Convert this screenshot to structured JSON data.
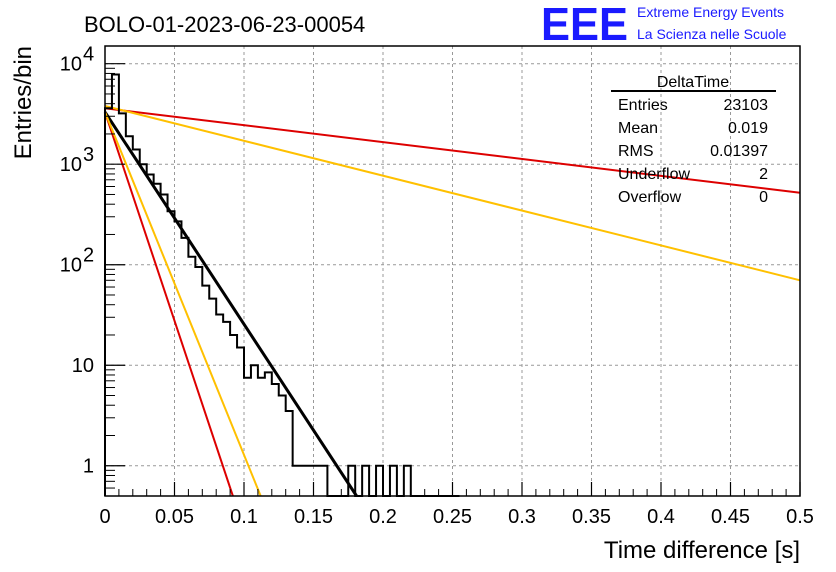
{
  "chart_data": {
    "type": "histogram",
    "title": "BOLO-01-2023-06-23-00054",
    "xlabel": "Time difference [s]",
    "ylabel": "Entries/bin",
    "xlim": [
      0,
      0.5
    ],
    "ylim": [
      0.5,
      15000
    ],
    "yscale": "log",
    "grid": true,
    "x_ticks": [
      "0",
      "0.05",
      "0.1",
      "0.15",
      "0.2",
      "0.25",
      "0.3",
      "0.35",
      "0.4",
      "0.45",
      "0.5"
    ],
    "y_ticks": [
      {
        "value": 1,
        "label": "1"
      },
      {
        "value": 10,
        "label": "10"
      },
      {
        "value": 100,
        "label": "10",
        "sup": "2"
      },
      {
        "value": 1000,
        "label": "10",
        "sup": "3"
      },
      {
        "value": 10000,
        "label": "10",
        "sup": "4"
      }
    ],
    "histogram": {
      "bin_width": 0.005,
      "x_start": 0,
      "counts": [
        3600,
        7800,
        3200,
        1900,
        1400,
        1000,
        790,
        640,
        500,
        340,
        270,
        185,
        120,
        95,
        62,
        46,
        32,
        27,
        20,
        15,
        7.5,
        10,
        7.5,
        8.5,
        6.5,
        5,
        3.5,
        1,
        1,
        1,
        1,
        1,
        0,
        0,
        0,
        1,
        0,
        1,
        0,
        1,
        0,
        1,
        0,
        1,
        0,
        0,
        0,
        0,
        0,
        0,
        0
      ],
      "color": "#000000"
    },
    "fits": [
      {
        "x": [
          0,
          0.181
        ],
        "y": [
          3300,
          0.5
        ],
        "color": "#000000"
      },
      {
        "x": [
          0,
          0.092
        ],
        "y": [
          3300,
          0.5
        ],
        "color": "#dd0000"
      },
      {
        "x": [
          0,
          0.112
        ],
        "y": [
          3300,
          0.5
        ],
        "color": "#ffc000"
      },
      {
        "x": [
          0,
          0.5
        ],
        "y": [
          3600,
          520
        ],
        "color": "#dd0000"
      },
      {
        "x": [
          0,
          0.5
        ],
        "y": [
          3800,
          70
        ],
        "color": "#ffc000"
      }
    ],
    "stats": {
      "name": "DeltaTime",
      "rows": [
        {
          "label": "Entries",
          "value": "23103"
        },
        {
          "label": "Mean",
          "value": "0.019"
        },
        {
          "label": "RMS",
          "value": "0.01397"
        },
        {
          "label": "Underflow",
          "value": "2"
        },
        {
          "label": "Overflow",
          "value": "0"
        }
      ]
    }
  },
  "logo": {
    "mark": "EEE",
    "line1": "Extreme Energy Events",
    "line2": "La Scienza nelle Scuole",
    "color": "#1a1aff"
  }
}
